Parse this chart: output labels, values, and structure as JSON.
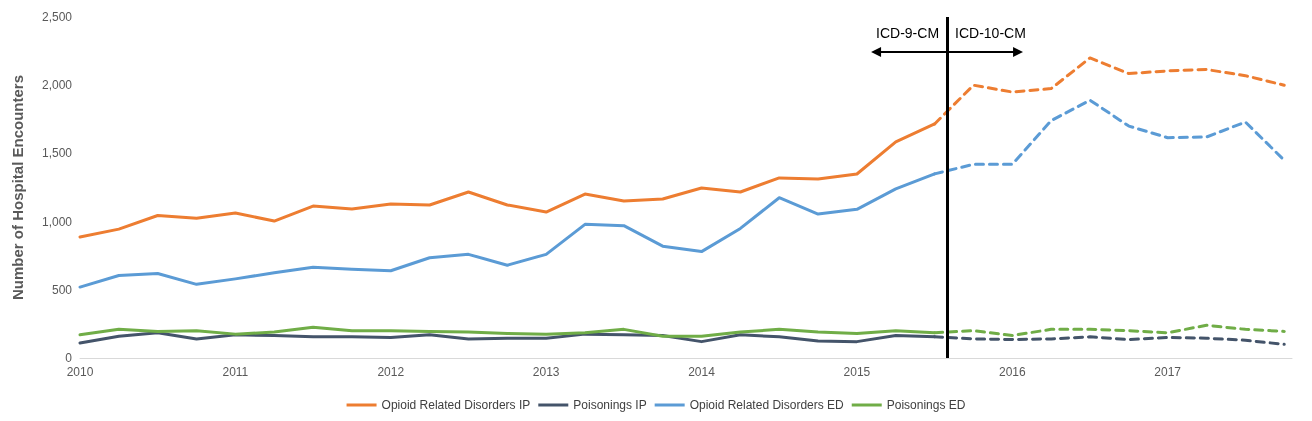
{
  "chart_data": {
    "type": "line",
    "ylabel": "Number of Hospital Encounters",
    "xlim": [
      2010,
      2017.8
    ],
    "xticks": [
      2010,
      2011,
      2012,
      2013,
      2014,
      2015,
      2016,
      2017
    ],
    "ylim": [
      0,
      2500
    ],
    "yticks": [
      0,
      {
        "value": 500,
        "label": "500"
      },
      {
        "value": 1000,
        "label": "1,000"
      },
      {
        "value": 1500,
        "label": "1,500"
      },
      {
        "value": 2000,
        "label": "2,000"
      },
      {
        "value": 2500,
        "label": "2,500"
      }
    ],
    "grid": false,
    "legend": "bottom",
    "marker": "none",
    "series": [
      {
        "name": "Opioid Related Disorders IP",
        "color": "#ed7d31",
        "line_style": "solid",
        "x": [
          2010,
          2010.25,
          2010.5,
          2010.75,
          2011,
          2011.25,
          2011.5,
          2011.75,
          2012,
          2012.25,
          2012.5,
          2012.75,
          2013,
          2013.25,
          2013.5,
          2013.75,
          2014,
          2014.25,
          2014.5,
          2014.75,
          2015,
          2015.25,
          2015.5
        ],
        "values": [
          887,
          945,
          1045,
          1025,
          1063,
          1004,
          1114,
          1092,
          1129,
          1122,
          1217,
          1122,
          1070,
          1202,
          1151,
          1166,
          1246,
          1217,
          1320,
          1312,
          1349,
          1584,
          1716
        ]
      },
      {
        "name": "Poisonings IP",
        "color": "#44546a",
        "line_style": "solid",
        "x": [
          2010,
          2010.25,
          2010.5,
          2010.75,
          2011,
          2011.25,
          2011.5,
          2011.75,
          2012,
          2012.25,
          2012.5,
          2012.75,
          2013,
          2013.25,
          2013.5,
          2013.75,
          2014,
          2014.25,
          2014.5,
          2014.75,
          2015,
          2015.25,
          2015.5
        ],
        "values": [
          110,
          160,
          185,
          140,
          170,
          165,
          155,
          155,
          150,
          170,
          140,
          145,
          145,
          175,
          170,
          165,
          120,
          170,
          155,
          125,
          120,
          165,
          155
        ]
      },
      {
        "name": "Opioid Related Disorders ED",
        "color": "#5b9bd5",
        "line_style": "solid",
        "x": [
          2010,
          2010.25,
          2010.5,
          2010.75,
          2011,
          2011.25,
          2011.5,
          2011.75,
          2012,
          2012.25,
          2012.5,
          2012.75,
          2013,
          2013.25,
          2013.5,
          2013.75,
          2014,
          2014.25,
          2014.5,
          2014.75,
          2015,
          2015.25,
          2015.5
        ],
        "values": [
          520,
          605,
          620,
          540,
          580,
          625,
          665,
          650,
          640,
          735,
          760,
          680,
          760,
          980,
          970,
          820,
          780,
          950,
          1175,
          1055,
          1090,
          1240,
          1350
        ]
      },
      {
        "name": "Poisonings ED",
        "color": "#70ad47",
        "line_style": "solid",
        "x": [
          2010,
          2010.25,
          2010.5,
          2010.75,
          2011,
          2011.25,
          2011.5,
          2011.75,
          2012,
          2012.25,
          2012.5,
          2012.75,
          2013,
          2013.25,
          2013.5,
          2013.75,
          2014,
          2014.25,
          2014.5,
          2014.75,
          2015,
          2015.25,
          2015.5
        ],
        "values": [
          170,
          210,
          195,
          200,
          175,
          190,
          225,
          200,
          200,
          195,
          190,
          180,
          175,
          185,
          210,
          160,
          160,
          190,
          210,
          190,
          180,
          200,
          185
        ]
      },
      {
        "color": "#ed7d31",
        "line_style": "dashed",
        "x": [
          2015.5,
          2015.75,
          2016,
          2016.25,
          2016.5,
          2016.75,
          2017,
          2017.25,
          2017.5,
          2017.75
        ],
        "values": [
          1716,
          2000,
          1950,
          1975,
          2200,
          2085,
          2105,
          2115,
          2070,
          2000
        ]
      },
      {
        "color": "#44546a",
        "line_style": "dashed",
        "x": [
          2015.5,
          2015.75,
          2016,
          2016.25,
          2016.5,
          2016.75,
          2017,
          2017.25,
          2017.5,
          2017.75
        ],
        "values": [
          155,
          140,
          135,
          140,
          155,
          135,
          150,
          145,
          130,
          100
        ]
      },
      {
        "color": "#5b9bd5",
        "line_style": "dashed",
        "x": [
          2015.5,
          2015.75,
          2016,
          2016.25,
          2016.5,
          2016.75,
          2017,
          2017.25,
          2017.5,
          2017.75
        ],
        "values": [
          1350,
          1420,
          1420,
          1740,
          1890,
          1700,
          1615,
          1620,
          1730,
          1450
        ]
      },
      {
        "color": "#70ad47",
        "line_style": "dashed",
        "x": [
          2015.5,
          2015.75,
          2016,
          2016.25,
          2016.5,
          2016.75,
          2017,
          2017.25,
          2017.5,
          2017.75
        ],
        "values": [
          185,
          200,
          165,
          210,
          210,
          200,
          185,
          240,
          210,
          195
        ]
      }
    ],
    "ref_lines": [
      {
        "axis": "x",
        "value": 2015.58,
        "color": "#000000",
        "line_style": "solid"
      }
    ],
    "annotations": [
      "ICD-9-CM",
      "ICD-10-CM"
    ]
  }
}
